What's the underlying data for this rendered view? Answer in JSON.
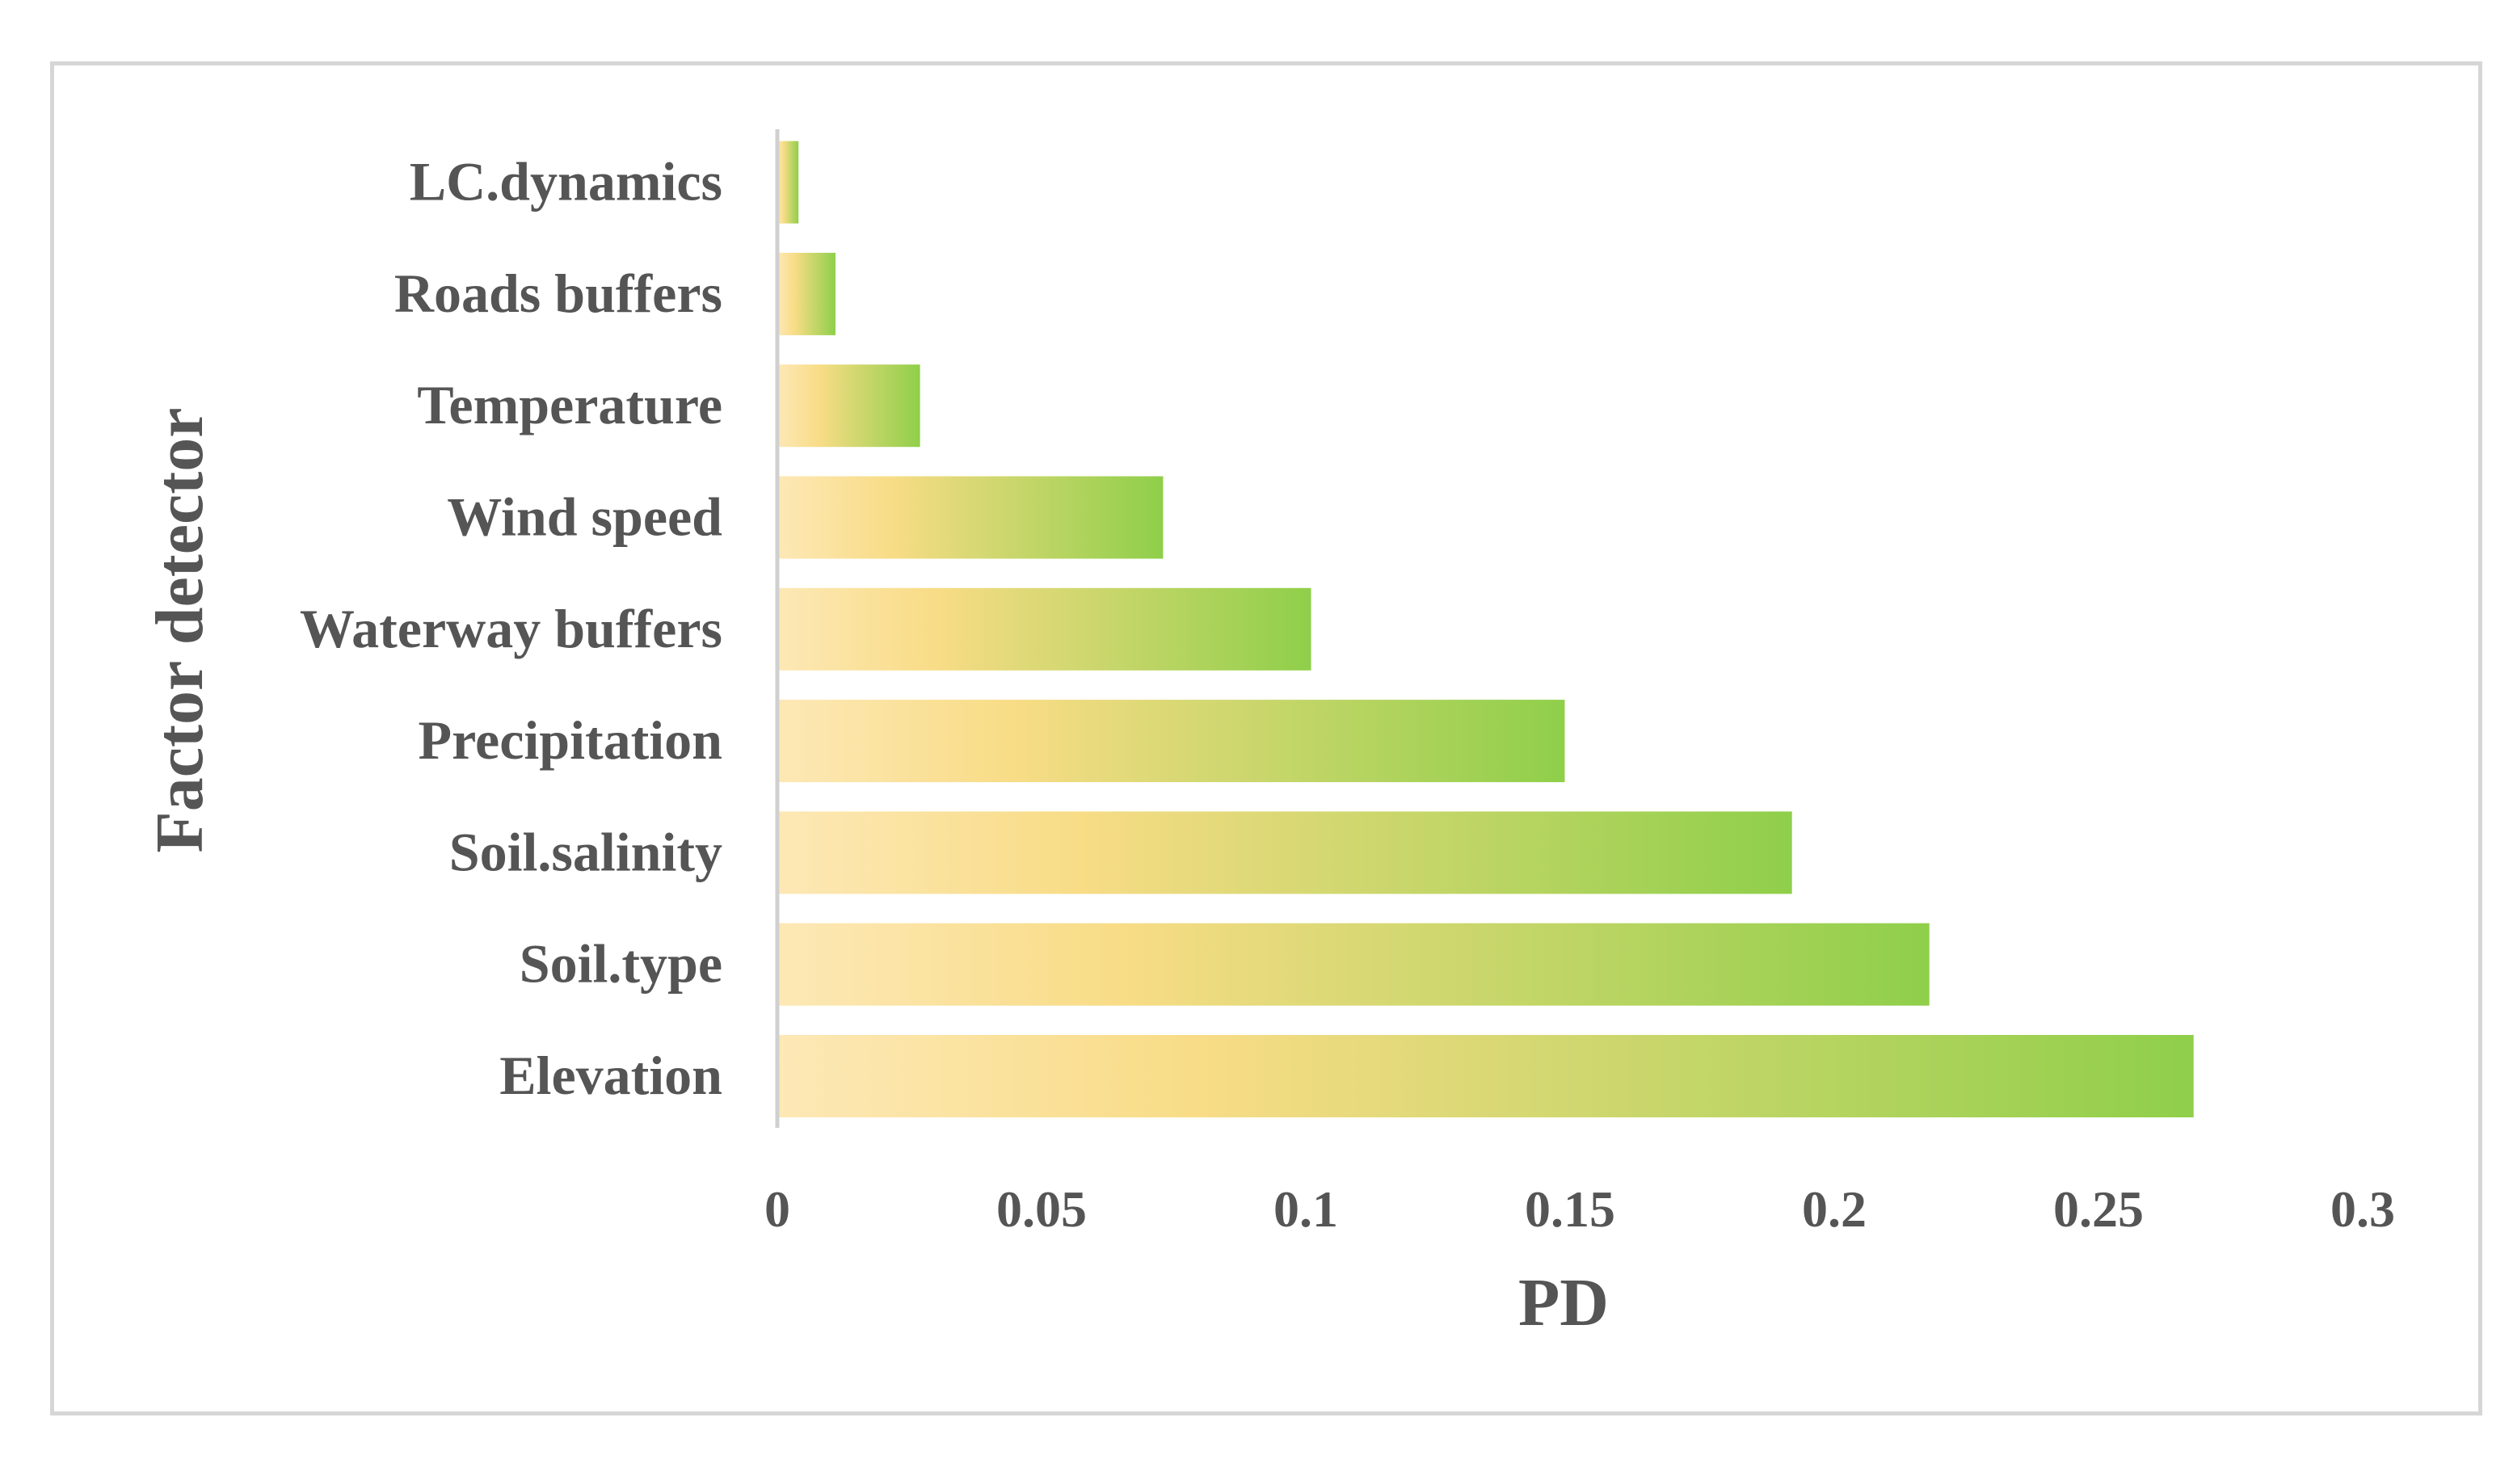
{
  "chart_data": {
    "type": "bar",
    "orientation": "horizontal",
    "categories": [
      "Elevation",
      "Soil.type",
      "Soil.salinity",
      "Precipitation",
      "Waterway buffers",
      "Wind speed",
      "Temperature",
      "Roads buffers",
      "LC.dynamics"
    ],
    "values": [
      0.268,
      0.218,
      0.192,
      0.149,
      0.101,
      0.073,
      0.027,
      0.011,
      0.004
    ],
    "xlabel": "PD",
    "ylabel": "Factor detector",
    "xlim": [
      0,
      0.3
    ],
    "xticks": [
      "0",
      "0.05",
      "0.1",
      "0.15",
      "0.2",
      "0.25",
      "0.3"
    ],
    "grid": false,
    "legend": "none",
    "colors": {
      "bar_start": "#fde8b6",
      "bar_mid": "#f8dc86",
      "bar_end": "#8fcf4a",
      "text": "#555555",
      "axis": "#d0d0d0",
      "frame": "#d6d6d6"
    }
  }
}
